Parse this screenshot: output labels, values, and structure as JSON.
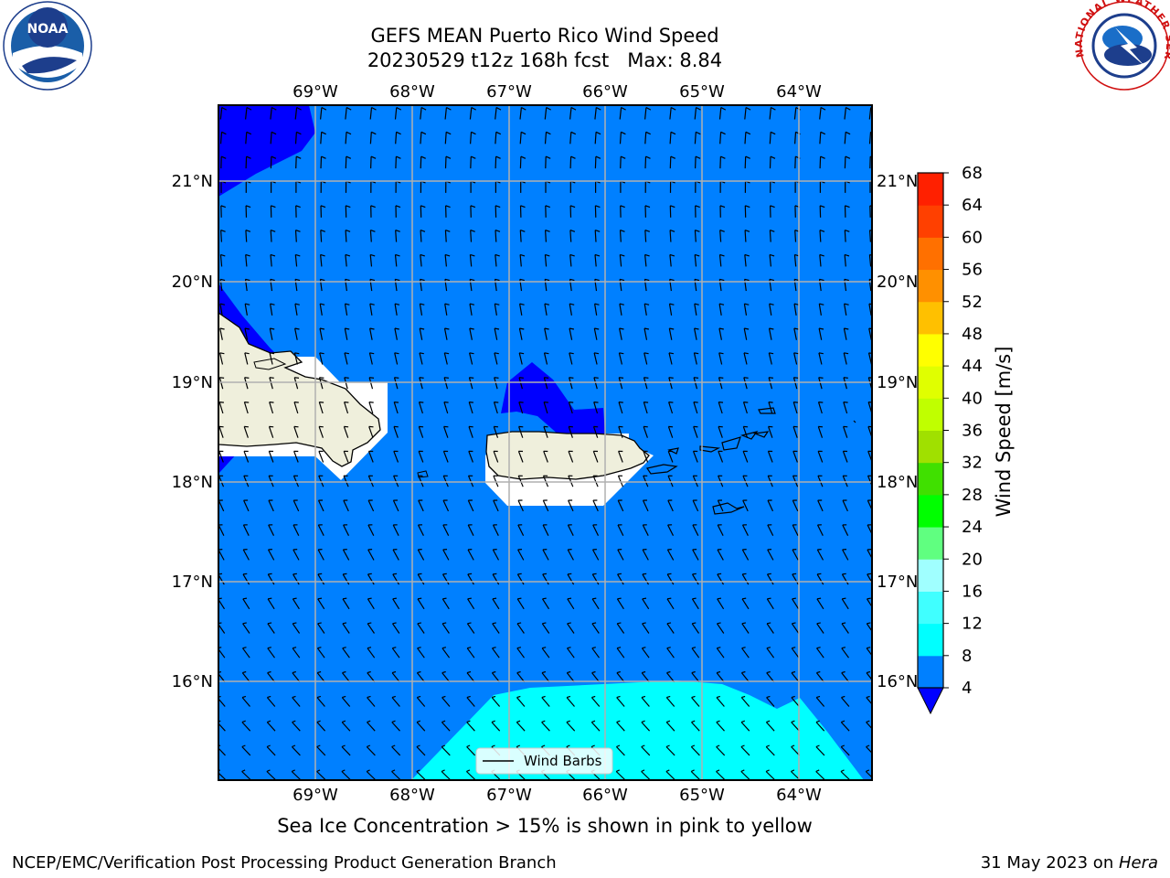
{
  "title_line1": "GEFS MEAN Puerto Rico Wind Speed",
  "title_line2": "20230529 t12z 168h fcst   Max: 8.84",
  "caption": "Sea Ice Concentration > 15% is shown in pink to yellow",
  "footer_left": "NCEP/EMC/Verification Post Processing Product Generation Branch",
  "footer_date": "31 May 2023 on ",
  "footer_host": "Hera",
  "legend_label": "Wind Barbs",
  "noaa_logo_text": "NOAA",
  "nws_logo_text": "NATIONAL WEATHER SERVICE",
  "lon_labels": [
    "69°W",
    "68°W",
    "67°W",
    "66°W",
    "65°W",
    "64°W"
  ],
  "lat_labels": [
    "21°N",
    "20°N",
    "19°N",
    "18°N",
    "17°N",
    "16°N"
  ],
  "colorbar": {
    "label": "Wind Speed [m/s]",
    "ticks": [
      "4",
      "8",
      "12",
      "16",
      "20",
      "24",
      "28",
      "32",
      "36",
      "40",
      "44",
      "48",
      "52",
      "56",
      "60",
      "64",
      "68"
    ],
    "colors": [
      "#0080ff",
      "#00ffff",
      "#40ffff",
      "#a0ffff",
      "#60ff80",
      "#00ff00",
      "#40e000",
      "#a0e000",
      "#c0ff00",
      "#e0ff00",
      "#ffff00",
      "#ffc000",
      "#ff9000",
      "#ff7000",
      "#ff4000",
      "#ff2000"
    ],
    "under_color": "#0000ff"
  },
  "colors": {
    "ocean_main": "#0080ff",
    "ocean_low": "#0000ff",
    "ocean_high": "#00ffff",
    "land": "#efefdc"
  }
}
